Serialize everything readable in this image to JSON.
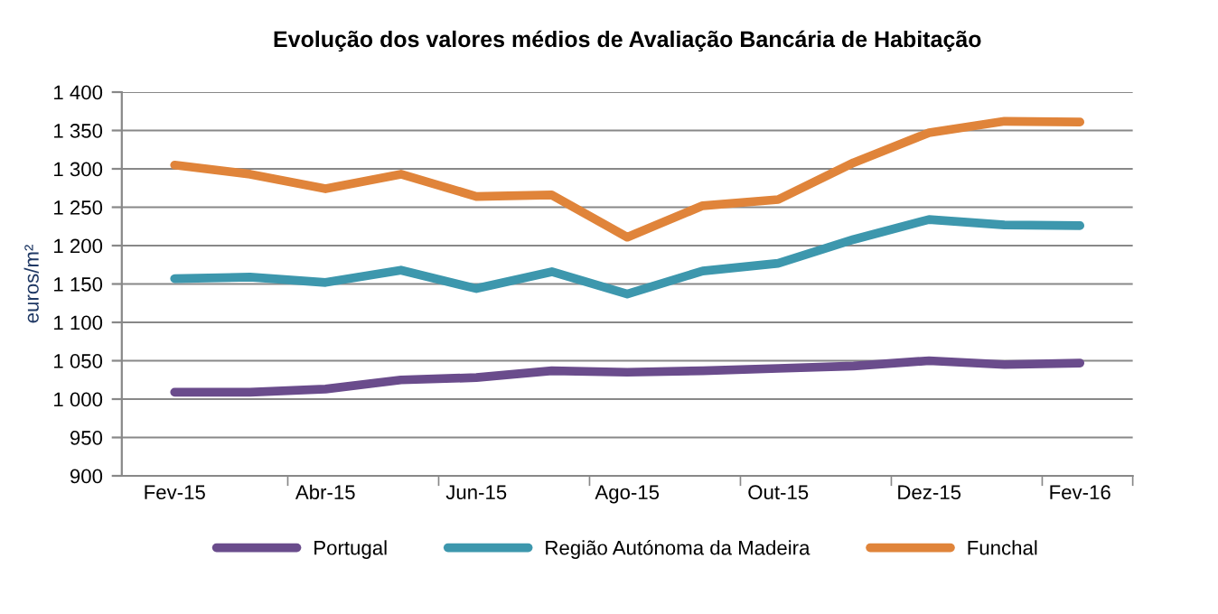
{
  "chart_data": {
    "type": "line",
    "title": "Evolução dos valores médios de Avaliação Bancária de Habitação",
    "ylabel": "euros/m²",
    "categories": [
      "Fev-15",
      null,
      "Abr-15",
      null,
      "Jun-15",
      null,
      "Ago-15",
      null,
      "Out-15",
      null,
      "Dez-15",
      null,
      "Fev-16"
    ],
    "series": [
      {
        "name": "Portugal",
        "color": "#6a4c8c",
        "values": [
          1009,
          1009,
          1013,
          1025,
          1028,
          1037,
          1035,
          1037,
          1040,
          1043,
          1050,
          1045,
          1047
        ]
      },
      {
        "name": "Região Autónoma da Madeira",
        "color": "#3d97ad",
        "values": [
          1157,
          1159,
          1152,
          1168,
          1144,
          1166,
          1137,
          1167,
          1177,
          1208,
          1234,
          1227,
          1226
        ]
      },
      {
        "name": "Funchal",
        "color": "#e0843a",
        "values": [
          1305,
          1293,
          1274,
          1293,
          1264,
          1266,
          1211,
          1252,
          1260,
          1308,
          1347,
          1362,
          1361
        ]
      }
    ],
    "ylim": [
      900,
      1400
    ],
    "yticks": [
      900,
      950,
      {
        "value": 1000,
        "label": "1 000"
      },
      {
        "value": 1050,
        "label": "1 050"
      },
      {
        "value": 1100,
        "label": "1 100"
      },
      {
        "value": 1150,
        "label": "1 150"
      },
      {
        "value": 1200,
        "label": "1 200"
      },
      {
        "value": 1250,
        "label": "1 250"
      },
      {
        "value": 1300,
        "label": "1 300"
      },
      {
        "value": 1350,
        "label": "1 350"
      },
      {
        "value": 1400,
        "label": "1 400"
      }
    ],
    "grid": "y",
    "legend": "bottom",
    "marker": "none",
    "line_style": "solid"
  }
}
